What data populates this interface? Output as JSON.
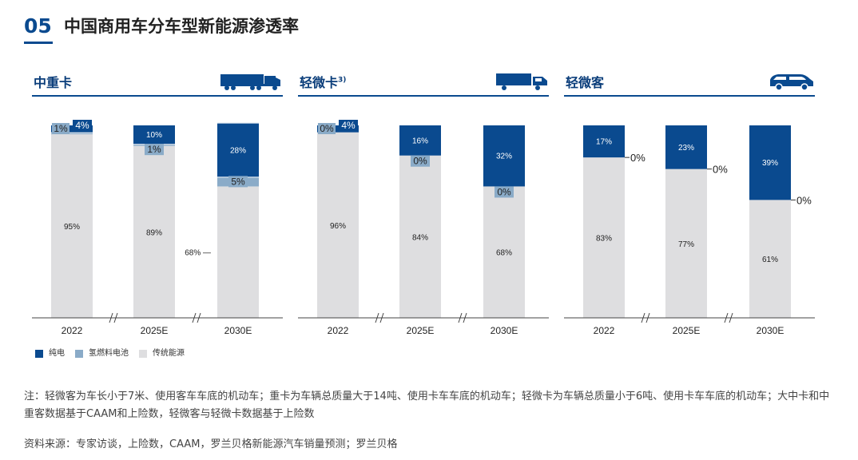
{
  "header": {
    "number": "05",
    "title": "中国商用车分车型新能源渗透率"
  },
  "legend": [
    {
      "label": "纯电",
      "color": "#0a4a8f"
    },
    {
      "label": "氢燃料电池",
      "color": "#8aabc8"
    },
    {
      "label": "传统能源",
      "color": "#dedee0"
    }
  ],
  "colors": {
    "bev": "#0a4a8f",
    "fcev": "#8aabc8",
    "ice": "#dedee0",
    "accent": "#0a4a8f"
  },
  "panels": [
    {
      "title": "中重卡",
      "superscript": "",
      "icon": "heavy-truck-icon"
    },
    {
      "title": "轻微卡",
      "superscript": "3)",
      "icon": "light-truck-icon"
    },
    {
      "title": "轻微客",
      "superscript": "",
      "icon": "van-icon"
    }
  ],
  "chart_data": [
    {
      "type": "bar",
      "stacked": true,
      "categories": [
        "2022",
        "2025E",
        "2030E"
      ],
      "series": [
        {
          "name": "纯电",
          "values": [
            4,
            10,
            28
          ],
          "labels": [
            "4%",
            "10%",
            "28%"
          ]
        },
        {
          "name": "氢燃料电池",
          "values": [
            1,
            1,
            5
          ],
          "labels": [
            "1%",
            "1%",
            "5%"
          ]
        },
        {
          "name": "传统能源",
          "values": [
            95,
            89,
            68
          ],
          "labels": [
            "95%",
            "89%",
            "68%"
          ]
        }
      ],
      "ylim": [
        0,
        100
      ],
      "axis_breaks": true
    },
    {
      "type": "bar",
      "stacked": true,
      "categories": [
        "2022",
        "2025E",
        "2030E"
      ],
      "series": [
        {
          "name": "纯电",
          "values": [
            4,
            16,
            32
          ],
          "labels": [
            "4%",
            "16%",
            "32%"
          ]
        },
        {
          "name": "氢燃料电池",
          "values": [
            0,
            0,
            0
          ],
          "labels": [
            "0%",
            "0%",
            "0%"
          ]
        },
        {
          "name": "传统能源",
          "values": [
            96,
            84,
            68
          ],
          "labels": [
            "96%",
            "84%",
            "68%"
          ]
        }
      ],
      "ylim": [
        0,
        100
      ],
      "axis_breaks": true
    },
    {
      "type": "bar",
      "stacked": true,
      "categories": [
        "2022",
        "2025E",
        "2030E"
      ],
      "series": [
        {
          "name": "纯电",
          "values": [
            17,
            23,
            39
          ],
          "labels": [
            "17%",
            "23%",
            "39%"
          ]
        },
        {
          "name": "氢燃料电池",
          "values": [
            0,
            0,
            0
          ],
          "labels": [
            "0%",
            "0%",
            "0%"
          ]
        },
        {
          "name": "传统能源",
          "values": [
            83,
            77,
            61
          ],
          "labels": [
            "83%",
            "77%",
            "61%"
          ]
        }
      ],
      "ylim": [
        0,
        100
      ],
      "axis_breaks": true
    }
  ],
  "footnote": "注：轻微客为车长小于7米、使用客车车底的机动车；重卡为车辆总质量大于14吨、使用卡车车底的机动车；轻微卡为车辆总质量小于6吨、使用卡车车底的机动车；大中卡和中重客数据基于CAAM和上险数，轻微客与轻微卡数据基于上险数",
  "source": "资料来源：专家访谈，上险数，CAAM，罗兰贝格新能源汽车销量预测；罗兰贝格"
}
